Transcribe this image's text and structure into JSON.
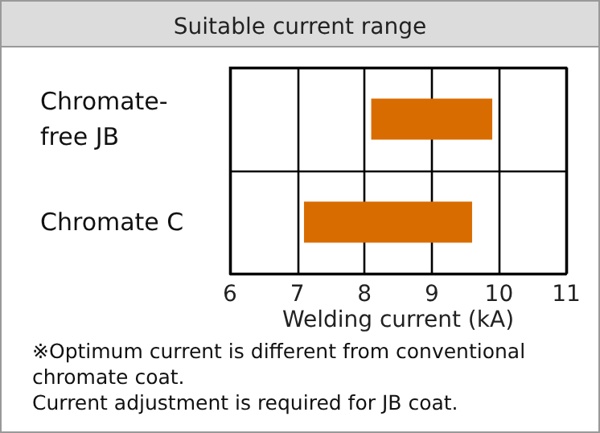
{
  "chart_data": {
    "type": "bar",
    "orientation": "horizontal",
    "title": "Suitable current range",
    "categories": [
      "Chromate-\nfree JB",
      "Chromate C"
    ],
    "values": [
      1.8,
      2.5
    ],
    "base": [
      8.1,
      7.1
    ],
    "color": "#d96c00",
    "xlabel": "Welding current (kA)",
    "xlim": [
      6,
      11
    ],
    "xticks": [
      6,
      7,
      8,
      9,
      10,
      11
    ],
    "grid": true,
    "annotations": [
      "※Optimum current is different from conventional chromate coat.",
      "Current adjustment is required for JB coat."
    ]
  }
}
